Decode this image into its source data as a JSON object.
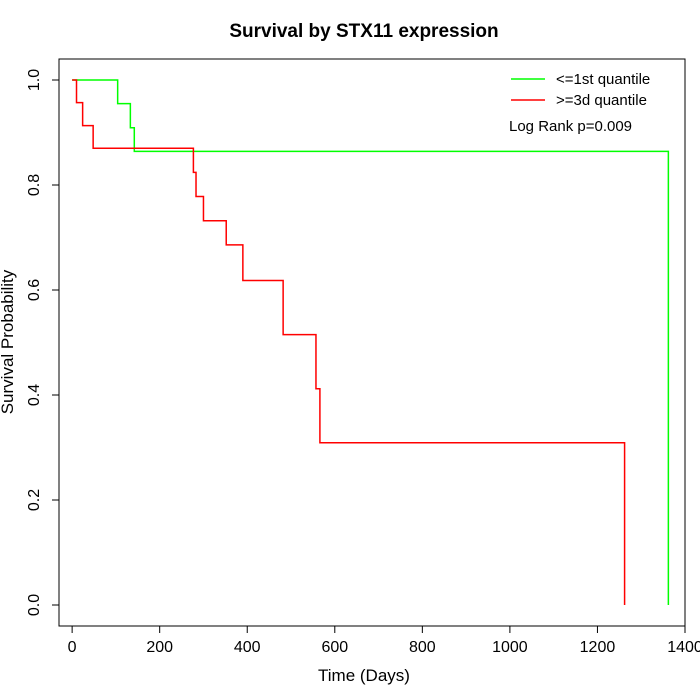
{
  "chart_data": {
    "type": "line",
    "step": true,
    "title": "Survival by STX11 expression",
    "xlabel": "Time (Days)",
    "ylabel": "Survival Probability",
    "xlim": [
      -30,
      1400
    ],
    "ylim": [
      -0.04,
      1.04
    ],
    "x_ticks": [
      0,
      200,
      400,
      600,
      800,
      1000,
      1200,
      1400
    ],
    "y_ticks": [
      0.0,
      0.2,
      0.4,
      0.6,
      0.8,
      1.0
    ],
    "x_tick_labels": [
      "0",
      "200",
      "400",
      "600",
      "800",
      "1000",
      "1200",
      "1400"
    ],
    "y_tick_labels": [
      "0.0",
      "0.2",
      "0.4",
      "0.6",
      "0.8",
      "1.0"
    ],
    "grid": false,
    "legend_position": "top-right",
    "annotation": "Log Rank p=0.009",
    "series": [
      {
        "name": "<=1st quantile",
        "color": "#00ff00",
        "x": [
          0,
          104,
          133,
          142,
          1362,
          1362
        ],
        "y": [
          1.0,
          0.955,
          0.909,
          0.864,
          0.864,
          0.0
        ]
      },
      {
        "name": ">=3d quantile",
        "color": "#ff0000",
        "x": [
          0,
          10,
          24,
          48,
          277,
          283,
          300,
          352,
          390,
          482,
          557,
          566,
          1262,
          1262
        ],
        "y": [
          1.0,
          0.957,
          0.913,
          0.87,
          0.824,
          0.778,
          0.732,
          0.686,
          0.618,
          0.515,
          0.412,
          0.309,
          0.309,
          0.0
        ]
      }
    ]
  }
}
